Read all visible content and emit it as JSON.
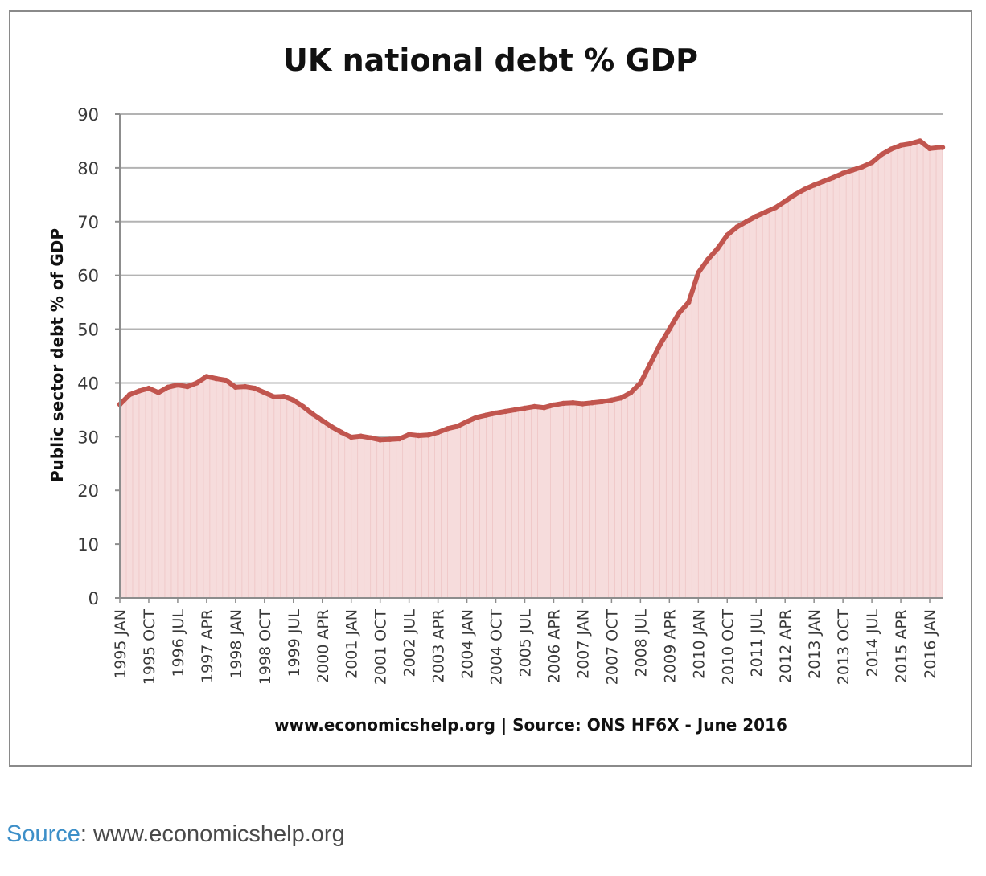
{
  "caption": {
    "link_label": "Source",
    "rest": ": www.economicshelp.org"
  },
  "colors": {
    "line": "#c1554e",
    "fill": "#f6dcdc",
    "grid": "#b3b3b3",
    "axis_text": "#3a3a3a",
    "caption_link": "#3d8fc8"
  },
  "chart_data": {
    "type": "area",
    "title": "UK national debt % GDP",
    "ylabel": "Public sector debt % of GDP",
    "xlabel": "www.economicshelp.org | Source: ONS HF6X - June 2016",
    "ylim": [
      0,
      90
    ],
    "yticks": [
      0,
      10,
      20,
      30,
      40,
      50,
      60,
      70,
      80,
      90
    ],
    "grid": true,
    "legend": "none",
    "xlim": [
      "1995-01",
      "2016-05"
    ],
    "xticks": [
      "1995 JAN",
      "1995 OCT",
      "1996 JUL",
      "1997 APR",
      "1998 JAN",
      "1998 OCT",
      "1999 JUL",
      "2000 APR",
      "2001 JAN",
      "2001 OCT",
      "2002 JUL",
      "2003 APR",
      "2004 JAN",
      "2004 OCT",
      "2005 JUL",
      "2006 APR",
      "2007 JAN",
      "2007 OCT",
      "2008 JUL",
      "2009 APR",
      "2010 JAN",
      "2010 OCT",
      "2011 JUL",
      "2012 APR",
      "2013 JAN",
      "2013 OCT",
      "2014 JUL",
      "2015 APR",
      "2016 JAN"
    ],
    "series": [
      {
        "x": [
          "1995-01",
          "1995-04",
          "1995-07",
          "1995-10",
          "1996-01",
          "1996-04",
          "1996-07",
          "1996-10",
          "1997-01",
          "1997-04",
          "1997-07",
          "1997-10",
          "1998-01",
          "1998-04",
          "1998-07",
          "1998-10",
          "1999-01",
          "1999-04",
          "1999-07",
          "1999-10",
          "2000-01",
          "2000-04",
          "2000-07",
          "2000-10",
          "2001-01",
          "2001-04",
          "2001-07",
          "2001-10",
          "2002-01",
          "2002-04",
          "2002-07",
          "2002-10",
          "2003-01",
          "2003-04",
          "2003-07",
          "2003-10",
          "2004-01",
          "2004-04",
          "2004-07",
          "2004-10",
          "2005-01",
          "2005-04",
          "2005-07",
          "2005-10",
          "2006-01",
          "2006-04",
          "2006-07",
          "2006-10",
          "2007-01",
          "2007-04",
          "2007-07",
          "2007-10",
          "2008-01",
          "2008-04",
          "2008-07",
          "2008-10",
          "2009-01",
          "2009-04",
          "2009-07",
          "2009-10",
          "2010-01",
          "2010-04",
          "2010-07",
          "2010-10",
          "2011-01",
          "2011-04",
          "2011-07",
          "2011-10",
          "2012-01",
          "2012-04",
          "2012-07",
          "2012-10",
          "2013-01",
          "2013-04",
          "2013-07",
          "2013-10",
          "2014-01",
          "2014-04",
          "2014-07",
          "2014-10",
          "2015-01",
          "2015-04",
          "2015-07",
          "2015-10",
          "2016-01",
          "2016-04",
          "2016-05"
        ],
        "values": [
          36.0,
          37.8,
          38.5,
          39.0,
          38.2,
          39.2,
          39.6,
          39.3,
          40.0,
          41.2,
          40.8,
          40.5,
          39.2,
          39.3,
          39.0,
          38.2,
          37.4,
          37.5,
          36.8,
          35.6,
          34.2,
          33.0,
          31.8,
          30.8,
          29.9,
          30.1,
          29.8,
          29.4,
          29.5,
          29.6,
          30.4,
          30.2,
          30.3,
          30.8,
          31.5,
          31.9,
          32.8,
          33.6,
          34.0,
          34.4,
          34.7,
          35.0,
          35.3,
          35.6,
          35.4,
          35.9,
          36.2,
          36.3,
          36.1,
          36.3,
          36.5,
          36.8,
          37.2,
          38.2,
          40.0,
          43.5,
          47.0,
          50.0,
          53.0,
          55.0,
          60.5,
          63.0,
          65.0,
          67.5,
          69.0,
          70.0,
          71.0,
          71.8,
          72.6,
          73.8,
          75.0,
          76.0,
          76.8,
          77.5,
          78.2,
          79.0,
          79.6,
          80.2,
          81.0,
          82.5,
          83.5,
          84.2,
          84.5,
          85.0,
          83.6,
          83.8,
          83.8
        ]
      }
    ]
  }
}
